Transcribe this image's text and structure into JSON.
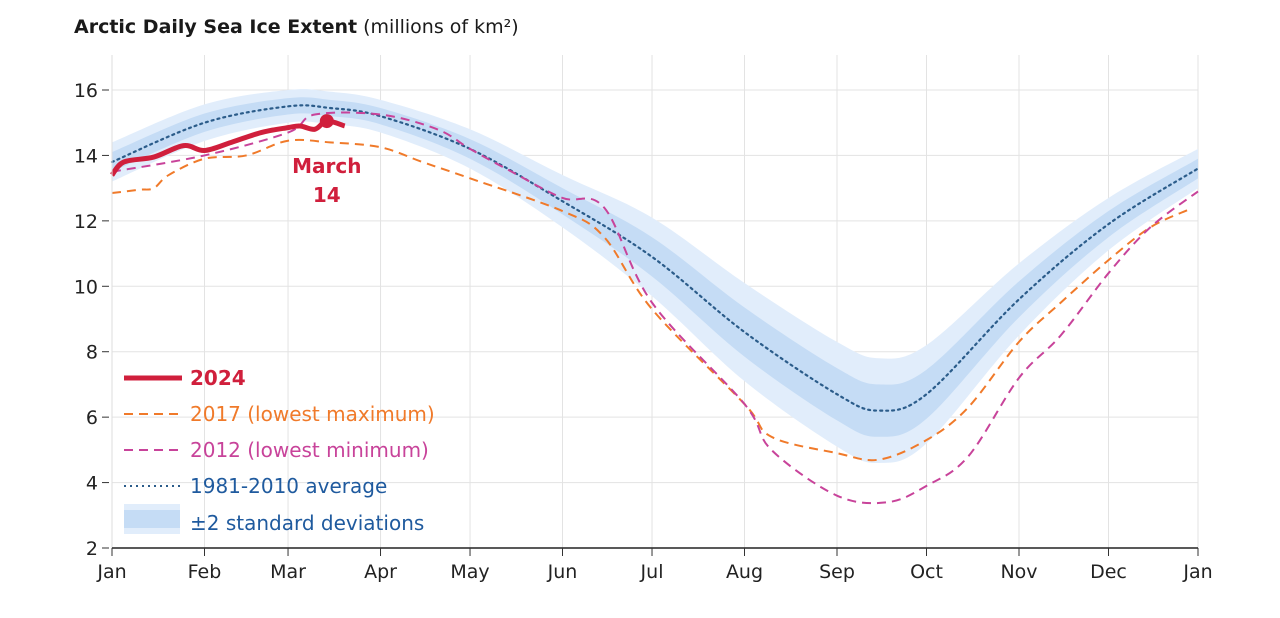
{
  "chart_data": {
    "type": "line",
    "title": "Arctic Daily Sea Ice Extent",
    "units": "(millions of km²)",
    "xlabel": "",
    "ylabel": "",
    "ylim": [
      2,
      17
    ],
    "yticks": [
      2,
      4,
      6,
      8,
      10,
      12,
      14,
      16
    ],
    "xticks": [
      {
        "label": "Jan",
        "date": "01-01"
      },
      {
        "label": "Feb",
        "date": "02-01"
      },
      {
        "label": "Mar",
        "date": "03-01"
      },
      {
        "label": "Apr",
        "date": "04-01"
      },
      {
        "label": "May",
        "date": "05-01"
      },
      {
        "label": "Jun",
        "date": "06-01"
      },
      {
        "label": "Jul",
        "date": "07-01"
      },
      {
        "label": "Aug",
        "date": "08-01"
      },
      {
        "label": "Sep",
        "date": "09-01"
      },
      {
        "label": "Oct",
        "date": "10-01"
      },
      {
        "label": "Nov",
        "date": "11-01"
      },
      {
        "label": "Dec",
        "date": "12-01"
      },
      {
        "label": "Jan",
        "date": "12-31"
      }
    ],
    "grid": true,
    "legend_placement": "bottom-left",
    "band": {
      "name": "±2 standard deviations",
      "colors": {
        "inner": "#c5dcf5",
        "outer": "#e1edfb"
      },
      "dates": [
        "01-01",
        "02-01",
        "03-01",
        "03-15",
        "04-01",
        "05-01",
        "06-01",
        "07-01",
        "08-01",
        "09-01",
        "09-15",
        "10-01",
        "11-01",
        "12-01",
        "12-31"
      ],
      "std_dev": [
        0.3,
        0.28,
        0.25,
        0.25,
        0.25,
        0.3,
        0.4,
        0.6,
        0.75,
        0.8,
        0.8,
        0.75,
        0.55,
        0.4,
        0.3
      ]
    },
    "series": [
      {
        "name": "1981-2010 average",
        "color": "#2b5c8a",
        "style": "dotted",
        "dates": [
          "01-01",
          "02-01",
          "03-01",
          "03-15",
          "04-01",
          "05-01",
          "06-01",
          "07-01",
          "08-01",
          "09-01",
          "09-15",
          "10-01",
          "11-01",
          "12-01",
          "12-31"
        ],
        "values": [
          13.8,
          15.0,
          15.5,
          15.45,
          15.2,
          14.2,
          12.6,
          10.9,
          8.6,
          6.7,
          6.2,
          6.7,
          9.6,
          11.9,
          13.6
        ]
      },
      {
        "name": "2017 (lowest maximum)",
        "color": "#f07a2a",
        "style": "dashed",
        "dates": [
          "01-01",
          "01-10",
          "01-15",
          "01-20",
          "02-01",
          "02-15",
          "03-01",
          "03-15",
          "04-01",
          "04-15",
          "05-01",
          "06-01",
          "06-15",
          "07-01",
          "08-01",
          "08-10",
          "09-01",
          "09-15",
          "10-01",
          "10-15",
          "11-01",
          "11-15",
          "12-01",
          "12-15",
          "12-28"
        ],
        "values": [
          12.85,
          12.95,
          13.0,
          13.4,
          13.9,
          14.0,
          14.45,
          14.4,
          14.25,
          13.8,
          13.3,
          12.3,
          11.5,
          9.3,
          6.4,
          5.4,
          4.9,
          4.7,
          5.3,
          6.3,
          8.3,
          9.5,
          10.8,
          11.8,
          12.35
        ]
      },
      {
        "name": "2012 (lowest minimum)",
        "color": "#c8439a",
        "style": "dashed",
        "dates": [
          "01-01",
          "02-01",
          "03-01",
          "03-10",
          "04-01",
          "04-20",
          "05-01",
          "05-15",
          "06-01",
          "06-15",
          "07-01",
          "08-01",
          "08-10",
          "09-01",
          "09-18",
          "10-01",
          "10-15",
          "11-01",
          "11-15",
          "12-01",
          "12-15",
          "12-31"
        ],
        "values": [
          13.5,
          14.0,
          14.7,
          15.25,
          15.25,
          14.8,
          14.2,
          13.5,
          12.7,
          12.4,
          9.5,
          6.4,
          5.0,
          3.6,
          3.4,
          3.9,
          4.8,
          7.2,
          8.5,
          10.4,
          11.8,
          12.9
        ]
      },
      {
        "name": "2024",
        "color": "#d01f3c",
        "style": "solid",
        "dates": [
          "01-01",
          "01-05",
          "01-15",
          "01-25",
          "02-01",
          "02-10",
          "02-20",
          "03-01",
          "03-05",
          "03-10",
          "03-14",
          "03-20"
        ],
        "values": [
          13.4,
          13.8,
          13.95,
          14.3,
          14.15,
          14.4,
          14.7,
          14.85,
          14.9,
          14.8,
          15.05,
          14.9
        ]
      }
    ],
    "annotations": [
      {
        "text": "March\n14",
        "line1": "March",
        "line2": "14",
        "date": "03-14",
        "value": 15.05,
        "color": "#d01f3c"
      }
    ]
  }
}
